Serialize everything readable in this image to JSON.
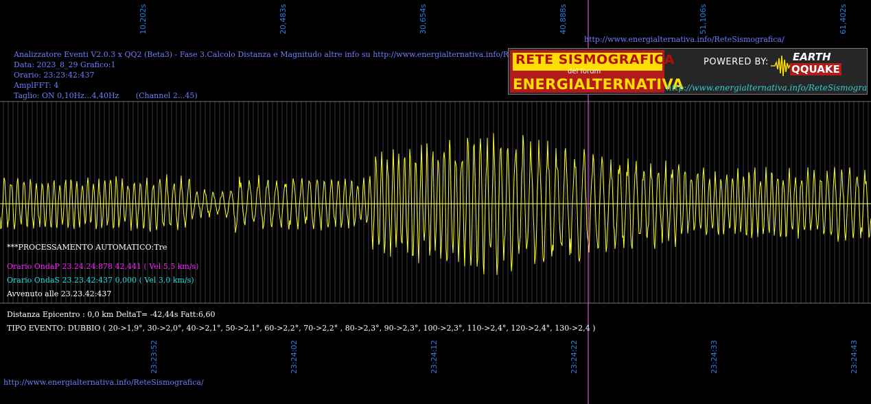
{
  "top_time_labels": [
    "10,202s",
    "20,483s",
    "30,654s",
    "40,888s",
    "51,106s",
    "61,402s"
  ],
  "top_url": "http://www.energialternativa.info/ReteSismografica/",
  "info": {
    "line1": "Analizzatore Eventi V2.0.3 x QQ2 (Beta3) - Fase 3.Calcolo Distanza e Magnitudo altre info su http://www.energialternativa.info/ReteSismografica/",
    "line2": "Data: 2023_8_29 Grafico:1",
    "line3": "Orario: 23:23:42:437",
    "line4": "AmplFFT: 4",
    "line5": "Taglio: ON 0,10Hz...4,40Hz       (Channel 2...45)"
  },
  "logo": {
    "title1": "RETE SISMOGRAFICA",
    "subtitle": "del forum",
    "title2": "ENERGIALTERNATIVA",
    "powered": "POWERED BY:",
    "earth": "EARTH",
    "quake": "QQUAKE",
    "url": "http://www.energialternativa.info/ReteSismografica"
  },
  "processing": {
    "auto": "***PROCESSAMENTO AUTOMATICO:Tre",
    "onda_p": "Orario OndaP 23.24.24:878  42,441 ( Vel 5,5 km/s)",
    "onda_s": "Orario OndaS 23.23.42:437  0,000 ( Vel 3,0 km/s)",
    "avvenuto": "Avvenuto alle 23.23.42:437",
    "distanza": "Distanza Epicentro : 0,0 km DeltaT= -42,44s  Fatt:6,60",
    "tipo": "TIPO EVENTO: DUBBIO ( 20->1,9°, 30->2,0°, 40->2,1°, 50->2,1°, 60->2,2°, 70->2,2° , 80->2,3°, 90->2,3°, 100->2,3°, 110->2,4°, 120->2,4°, 130->2,4 )"
  },
  "bottom_time_labels": [
    "23:23:52",
    "23:24:02",
    "23:24:12",
    "23:24:22",
    "23:24:33",
    "23:24:43"
  ],
  "bottom_url": "http://www.energialternativa.info/ReteSismografica/",
  "colors": {
    "background": "#000000",
    "trace": "#ffff33",
    "grid": "#555555",
    "marker": "#ff55ff",
    "label_blue": "#2f7fe0"
  }
}
